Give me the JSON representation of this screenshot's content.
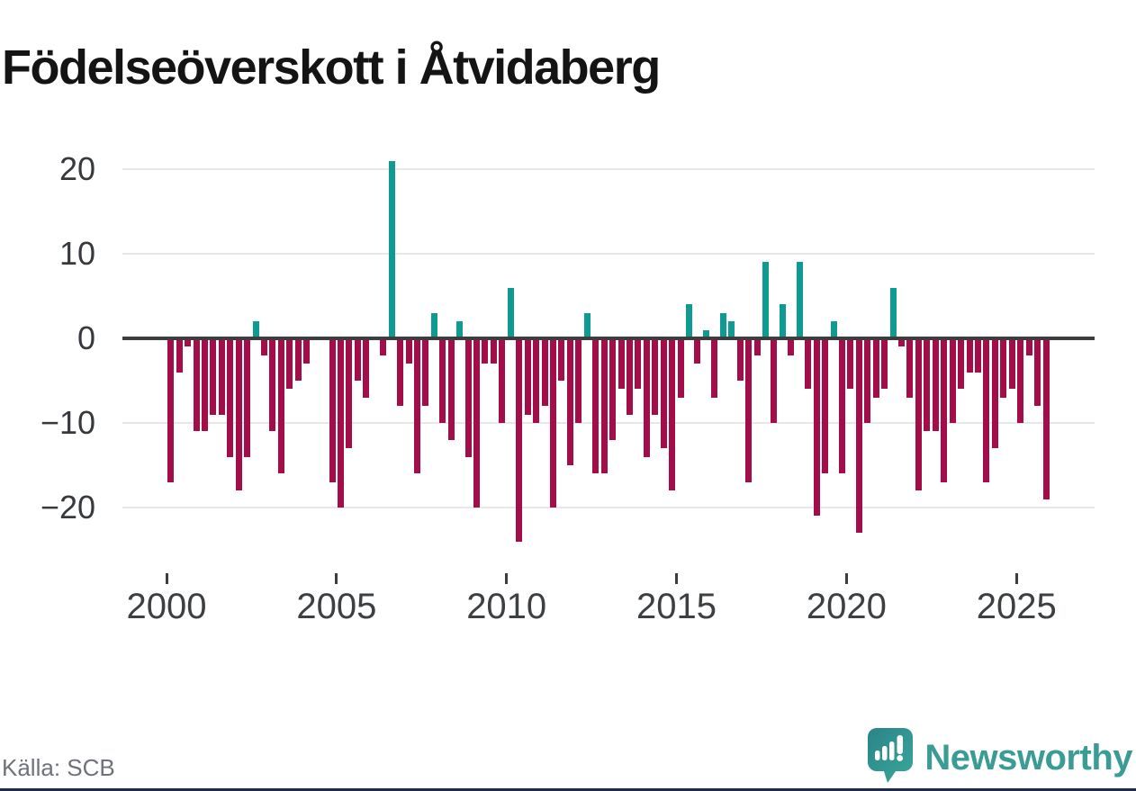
{
  "title": "Födelseöverskott i Åtvidaberg",
  "source": "Källa: SCB",
  "brand": {
    "name": "Newsworthy",
    "logo_icon": "newsworthy-speech-bubble-bar-chart-icon",
    "color": "#3a9c94"
  },
  "colors": {
    "positive_bar": "#0f9b94",
    "negative_bar": "#a30d49",
    "zero_line": "#3d3d3d",
    "gridline": "#e7e7e7",
    "footer_accent": "#1e2a49"
  },
  "y_axis": {
    "ticks": [
      {
        "label": "20",
        "value": 20
      },
      {
        "label": "10",
        "value": 10
      },
      {
        "label": "0",
        "value": 0
      },
      {
        "label": "−10",
        "value": -10
      },
      {
        "label": "−20",
        "value": -20
      }
    ]
  },
  "x_axis": {
    "ticks": [
      {
        "label": "2000",
        "year": 2000
      },
      {
        "label": "2005",
        "year": 2005
      },
      {
        "label": "2010",
        "year": 2010
      },
      {
        "label": "2015",
        "year": 2015
      },
      {
        "label": "2020",
        "year": 2020
      },
      {
        "label": "2025",
        "year": 2025
      }
    ]
  },
  "chart_data": {
    "type": "bar",
    "title": "Födelseöverskott i Åtvidaberg",
    "frequency": "quarterly",
    "start_period": "2000 Q1",
    "end_period": "2025 Q4",
    "xlabel": "",
    "ylabel": "",
    "ylim": [
      -26,
      23
    ],
    "grid": "horizontal",
    "legend": "none",
    "series": [
      {
        "name": "Födelseöverskott per kvartal",
        "values": [
          -17,
          -4,
          -1,
          -11,
          -11,
          -9,
          -9,
          -14,
          -18,
          -14,
          2,
          -2,
          -11,
          -16,
          -6,
          -5,
          -3,
          0,
          0,
          -17,
          -20,
          -13,
          -5,
          -7,
          0,
          -2,
          21,
          -8,
          -3,
          -16,
          -8,
          3,
          -10,
          -12,
          2,
          -14,
          -20,
          -3,
          -3,
          -10,
          6,
          -24,
          -9,
          -10,
          -8,
          -20,
          -5,
          -15,
          -10,
          3,
          -16,
          -16,
          -12,
          -6,
          -9,
          -6,
          -14,
          -9,
          -13,
          -18,
          -7,
          4,
          -3,
          1,
          -7,
          3,
          2,
          -5,
          -17,
          -2,
          9,
          -10,
          4,
          -2,
          9,
          -6,
          -21,
          -16,
          2,
          -16,
          -6,
          -23,
          -10,
          -7,
          -6,
          6,
          -1,
          -7,
          -18,
          -11,
          -11,
          -17,
          -10,
          -6,
          -4,
          -4,
          -17,
          -13,
          -7,
          -6,
          -10,
          -2,
          -8,
          -19
        ]
      }
    ]
  }
}
